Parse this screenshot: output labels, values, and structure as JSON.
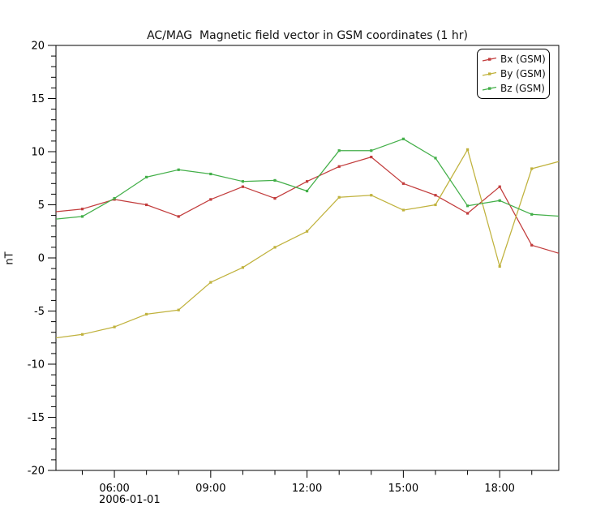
{
  "chart_data": {
    "type": "line",
    "title": "AC/MAG  Magnetic field vector in GSM coordinates (1 hr)",
    "ylabel": "nT",
    "ylim": [
      -20,
      20
    ],
    "y_major_tick_step": 5,
    "y_minor_tick_step": 1,
    "y_tick_labels": [
      "-20",
      "-15",
      "-10",
      "-5",
      "0",
      "5",
      "10",
      "15",
      "20"
    ],
    "xlim_hours": [
      4.18,
      19.84
    ],
    "x_major_ticks": [
      {
        "hour": 6,
        "label": "06:00"
      },
      {
        "hour": 9,
        "label": "09:00"
      },
      {
        "hour": 12,
        "label": "12:00"
      },
      {
        "hour": 15,
        "label": "15:00"
      },
      {
        "hour": 18,
        "label": "18:00"
      }
    ],
    "x_minor_tick_hours": [
      5,
      7,
      8,
      10,
      11,
      13,
      14,
      16,
      17,
      19
    ],
    "x_date_label": "2006-01-01",
    "x_hours": [
      4,
      5,
      6,
      7,
      8,
      9,
      10,
      11,
      12,
      13,
      14,
      15,
      16,
      17,
      18,
      19,
      20
    ],
    "grid": false,
    "legend_position": "top-right-inside",
    "series": [
      {
        "name": "Bx (GSM)",
        "color": "#c23c3c",
        "values": [
          4.3,
          4.6,
          5.5,
          5.0,
          3.9,
          5.5,
          6.7,
          5.6,
          7.2,
          8.6,
          9.5,
          7.0,
          5.9,
          4.2,
          6.7,
          1.2,
          0.3
        ]
      },
      {
        "name": "By (GSM)",
        "color": "#c0b23d",
        "values": [
          -7.6,
          -7.2,
          -6.5,
          -5.3,
          -4.9,
          -2.3,
          -0.9,
          1.0,
          2.5,
          5.7,
          5.9,
          4.5,
          5.0,
          10.2,
          -0.8,
          8.4,
          9.2
        ]
      },
      {
        "name": "Bz (GSM)",
        "color": "#43af49",
        "values": [
          3.6,
          3.9,
          5.6,
          7.6,
          8.3,
          7.9,
          7.2,
          7.3,
          6.3,
          10.1,
          10.1,
          11.2,
          9.4,
          4.9,
          5.4,
          4.1,
          3.9
        ]
      }
    ]
  }
}
